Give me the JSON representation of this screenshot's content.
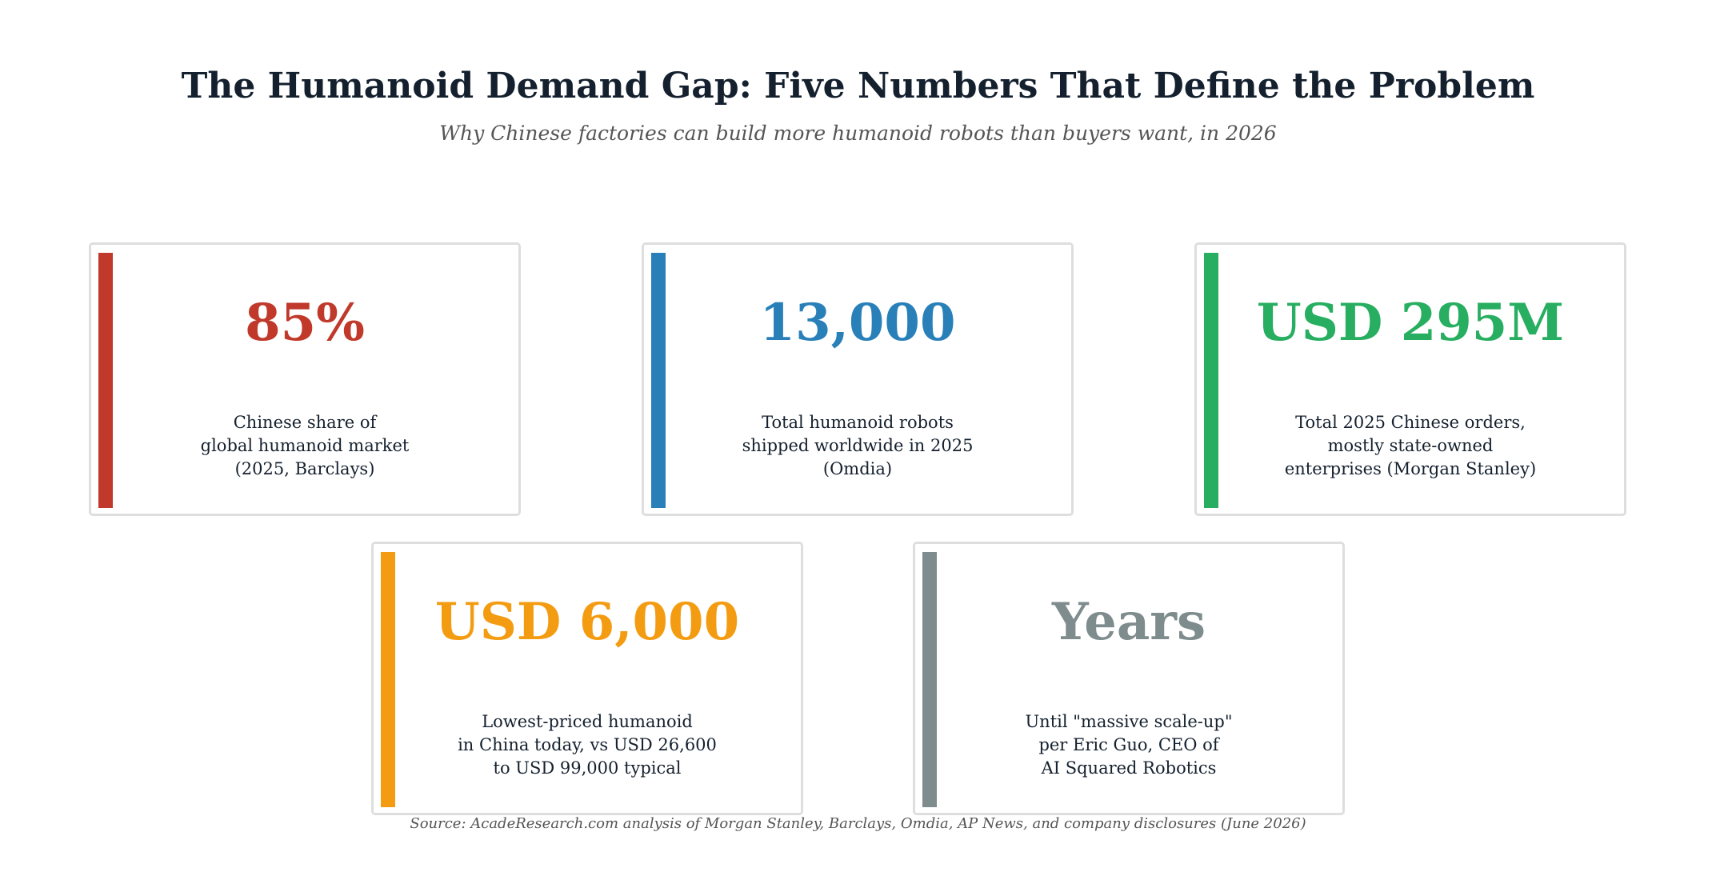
{
  "title": "The Humanoid Demand Gap: Five Numbers That Define the Problem",
  "subtitle": "Why Chinese factories can build more humanoid robots than buyers want, in 2026",
  "cards": [
    {
      "stat": "85%",
      "description": "Chinese share of\nglobal humanoid market\n(2025, Barclays)",
      "color": "#c0392b"
    },
    {
      "stat": "13,000",
      "description": "Total humanoid robots\nshipped worldwide in 2025\n(Omdia)",
      "color": "#2980b9"
    },
    {
      "stat": "USD 295M",
      "description": "Total 2025 Chinese orders,\nmostly state-owned\nenterprises (Morgan Stanley)",
      "color": "#27ae60"
    },
    {
      "stat": "USD 6,000",
      "description": "Lowest-priced humanoid\nin China today, vs USD 26,600\nto USD 99,000 typical",
      "color": "#f39c12"
    },
    {
      "stat": "Years",
      "description": "Until \"massive scale-up\"\nper Eric Guo, CEO of\nAI Squared Robotics",
      "color": "#7f8c8d"
    }
  ],
  "source": "Source: AcadeResearch.com analysis of Morgan Stanley, Barclays, Omdia, AP News, and company disclosures (June 2026)"
}
